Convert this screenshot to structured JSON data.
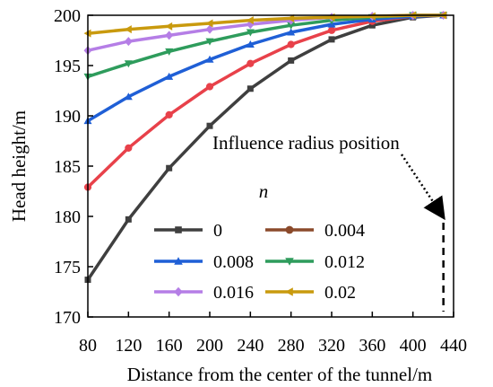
{
  "chart_data": {
    "type": "line",
    "xlabel": "Distance from the center of the tunnel/m",
    "ylabel": "Head height/m",
    "xlim": [
      80,
      440
    ],
    "ylim": [
      170,
      200
    ],
    "xticks": [
      80,
      120,
      160,
      200,
      240,
      280,
      320,
      360,
      400,
      440
    ],
    "yticks": [
      170,
      175,
      180,
      185,
      190,
      195,
      200
    ],
    "x": [
      80,
      120,
      160,
      200,
      240,
      280,
      320,
      360,
      400,
      430
    ],
    "legend_title": "n",
    "legend_position": "center",
    "grid": false,
    "series": [
      {
        "name": "0",
        "color": "#3f3f3f",
        "marker": "square",
        "values": [
          173.7,
          179.7,
          184.8,
          189.0,
          192.7,
          195.5,
          197.6,
          199.0,
          199.8,
          200.0
        ]
      },
      {
        "name": "0.004",
        "color": "#8b4a2b",
        "marker": "circle",
        "values": [
          182.9,
          186.8,
          190.1,
          192.9,
          195.2,
          197.1,
          198.5,
          199.4,
          199.9,
          200.0
        ]
      },
      {
        "name": "0.008",
        "color": "#1f5fd6",
        "marker": "triangle-up",
        "values": [
          189.5,
          191.9,
          193.9,
          195.6,
          197.1,
          198.3,
          199.1,
          199.6,
          199.9,
          200.0
        ]
      },
      {
        "name": "0.012",
        "color": "#2e9c5c",
        "marker": "triangle-down",
        "values": [
          193.9,
          195.2,
          196.4,
          197.4,
          198.3,
          199.0,
          199.5,
          199.8,
          200.0,
          200.0
        ]
      },
      {
        "name": "0.016",
        "color": "#b57ee6",
        "marker": "diamond",
        "values": [
          196.5,
          197.4,
          198.0,
          198.6,
          199.1,
          199.5,
          199.8,
          199.9,
          200.0,
          200.0
        ]
      },
      {
        "name": "0.02",
        "color": "#c99a0e",
        "marker": "triangle-left",
        "values": [
          198.2,
          198.6,
          198.9,
          199.2,
          199.5,
          199.7,
          199.8,
          199.9,
          200.0,
          200.0
        ]
      }
    ],
    "extra_series": [
      {
        "color": "#e8414a",
        "marker": "circle",
        "values": [
          182.9,
          186.8,
          190.1,
          192.9,
          195.2,
          197.1,
          198.5,
          199.4,
          199.9,
          200.0
        ]
      }
    ],
    "annotations": [
      {
        "text": "Influence radius position",
        "points_to_x": 430
      }
    ]
  }
}
